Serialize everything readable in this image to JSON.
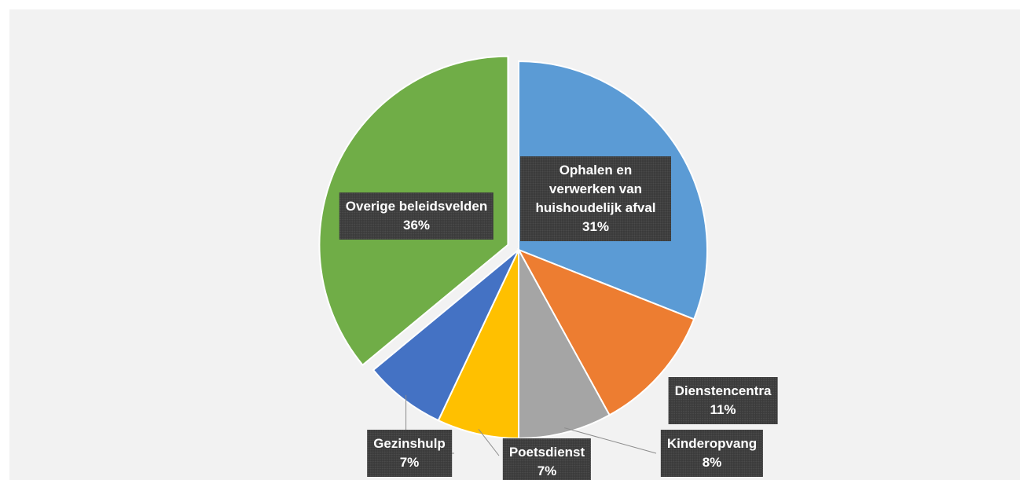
{
  "chart_data": {
    "type": "pie",
    "categories": [
      "Ophalen en verwerken van huishoudelijk afval",
      "Dienstencentra",
      "Kinderopvang",
      "Poetsdienst",
      "Gezinshulp",
      "Overige beleidsvelden"
    ],
    "values": [
      31,
      11,
      8,
      7,
      7,
      36
    ],
    "value_labels": [
      "31%",
      "11%",
      "8%",
      "7%",
      "7%",
      "36%"
    ],
    "colors": [
      "#5b9bd5",
      "#ed7d31",
      "#a5a5a5",
      "#ffc000",
      "#4472c4",
      "#70ad47"
    ]
  }
}
